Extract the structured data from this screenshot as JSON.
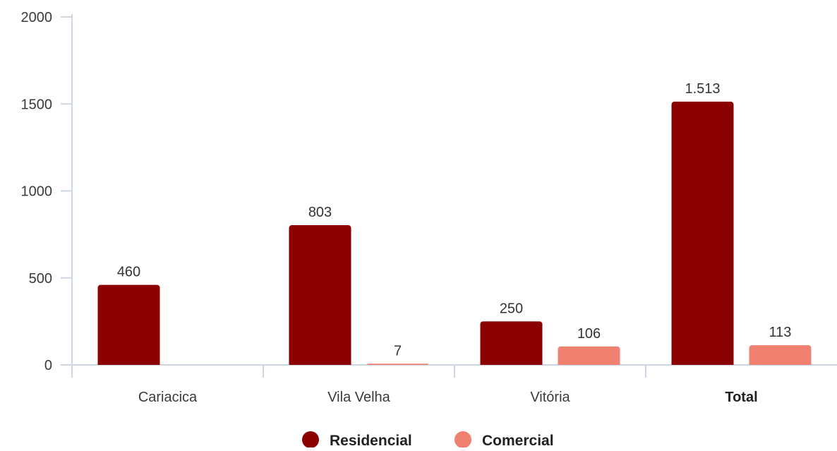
{
  "chart_data": {
    "type": "bar",
    "categories": [
      "Cariacica",
      "Vila Velha",
      "Vitória",
      "Total"
    ],
    "bold_categories": [
      "Total"
    ],
    "series": [
      {
        "name": "Residencial",
        "color": "#8b0000",
        "values": [
          460,
          803,
          250,
          1513
        ],
        "labels": [
          "460",
          "803",
          "250",
          "1.513"
        ]
      },
      {
        "name": "Comercial",
        "color": "#f08070",
        "values": [
          0,
          7,
          106,
          113
        ],
        "labels": [
          "",
          "7",
          "106",
          "113"
        ]
      }
    ],
    "yticks": [
      0,
      500,
      1000,
      1500,
      2000
    ],
    "ylim": [
      0,
      2000
    ],
    "title": "",
    "xlabel": "",
    "ylabel": "",
    "grid": false,
    "legend_position": "bottom-center"
  }
}
